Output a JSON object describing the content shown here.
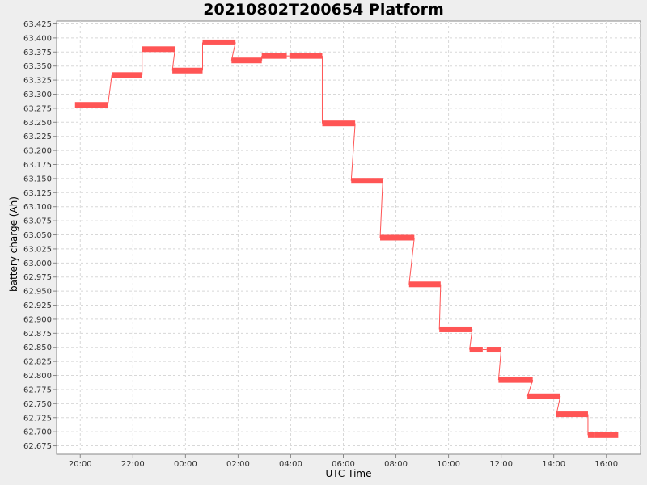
{
  "chart_data": {
    "type": "line",
    "title": "20210802T200654 Platform",
    "xlabel": "UTC Time",
    "ylabel": "battery charge (Ah)",
    "x_unit": "hours",
    "xlim": [
      -4.9,
      17.3
    ],
    "ylim": [
      62.66,
      63.43
    ],
    "x_tick_values": [
      -4,
      -2,
      0,
      2,
      4,
      6,
      8,
      10,
      12,
      14,
      16
    ],
    "x_tick_labels": [
      "20:00",
      "22:00",
      "00:00",
      "02:00",
      "04:00",
      "06:00",
      "08:00",
      "10:00",
      "12:00",
      "14:00",
      "16:00"
    ],
    "y_ticks": [
      "62.675",
      "62.700",
      "62.725",
      "62.750",
      "62.775",
      "62.800",
      "62.825",
      "62.850",
      "62.875",
      "62.900",
      "62.925",
      "62.950",
      "62.975",
      "63.000",
      "63.025",
      "63.050",
      "63.075",
      "63.100",
      "63.125",
      "63.150",
      "63.175",
      "63.200",
      "63.225",
      "63.250",
      "63.275",
      "63.300",
      "63.325",
      "63.350",
      "63.375",
      "63.400",
      "63.425"
    ],
    "grid": true,
    "series_color": "#ff5555",
    "series": [
      {
        "segments": [
          {
            "x0": -4.2,
            "x1": -2.95,
            "y": 63.281
          },
          {
            "x0": -2.8,
            "x1": -1.65,
            "y": 63.334
          },
          {
            "x0": -1.65,
            "x1": -0.4,
            "y": 63.38
          },
          {
            "x0": -0.5,
            "x1": 0.65,
            "y": 63.342
          },
          {
            "x0": 0.65,
            "x1": 1.9,
            "y": 63.392
          },
          {
            "x0": 1.75,
            "x1": 2.9,
            "y": 63.36
          },
          {
            "x0": 2.9,
            "x1": 3.85,
            "y": 63.368
          },
          {
            "x0": 3.95,
            "x1": 5.2,
            "y": 63.368
          },
          {
            "x0": 5.2,
            "x1": 6.45,
            "y": 63.248
          },
          {
            "x0": 6.3,
            "x1": 7.5,
            "y": 63.146
          },
          {
            "x0": 7.4,
            "x1": 8.7,
            "y": 63.045
          },
          {
            "x0": 8.5,
            "x1": 9.7,
            "y": 62.962
          },
          {
            "x0": 9.65,
            "x1": 10.9,
            "y": 62.882
          },
          {
            "x0": 10.8,
            "x1": 11.3,
            "y": 62.846
          },
          {
            "x0": 11.45,
            "x1": 12.0,
            "y": 62.846
          },
          {
            "x0": 11.9,
            "x1": 13.2,
            "y": 62.792
          },
          {
            "x0": 13.0,
            "x1": 14.25,
            "y": 62.763
          },
          {
            "x0": 14.1,
            "x1": 15.3,
            "y": 62.731
          },
          {
            "x0": 15.3,
            "x1": 15.55,
            "y": 62.694
          },
          {
            "x0": 15.55,
            "x1": 16.45,
            "y": 62.694
          }
        ]
      }
    ]
  }
}
